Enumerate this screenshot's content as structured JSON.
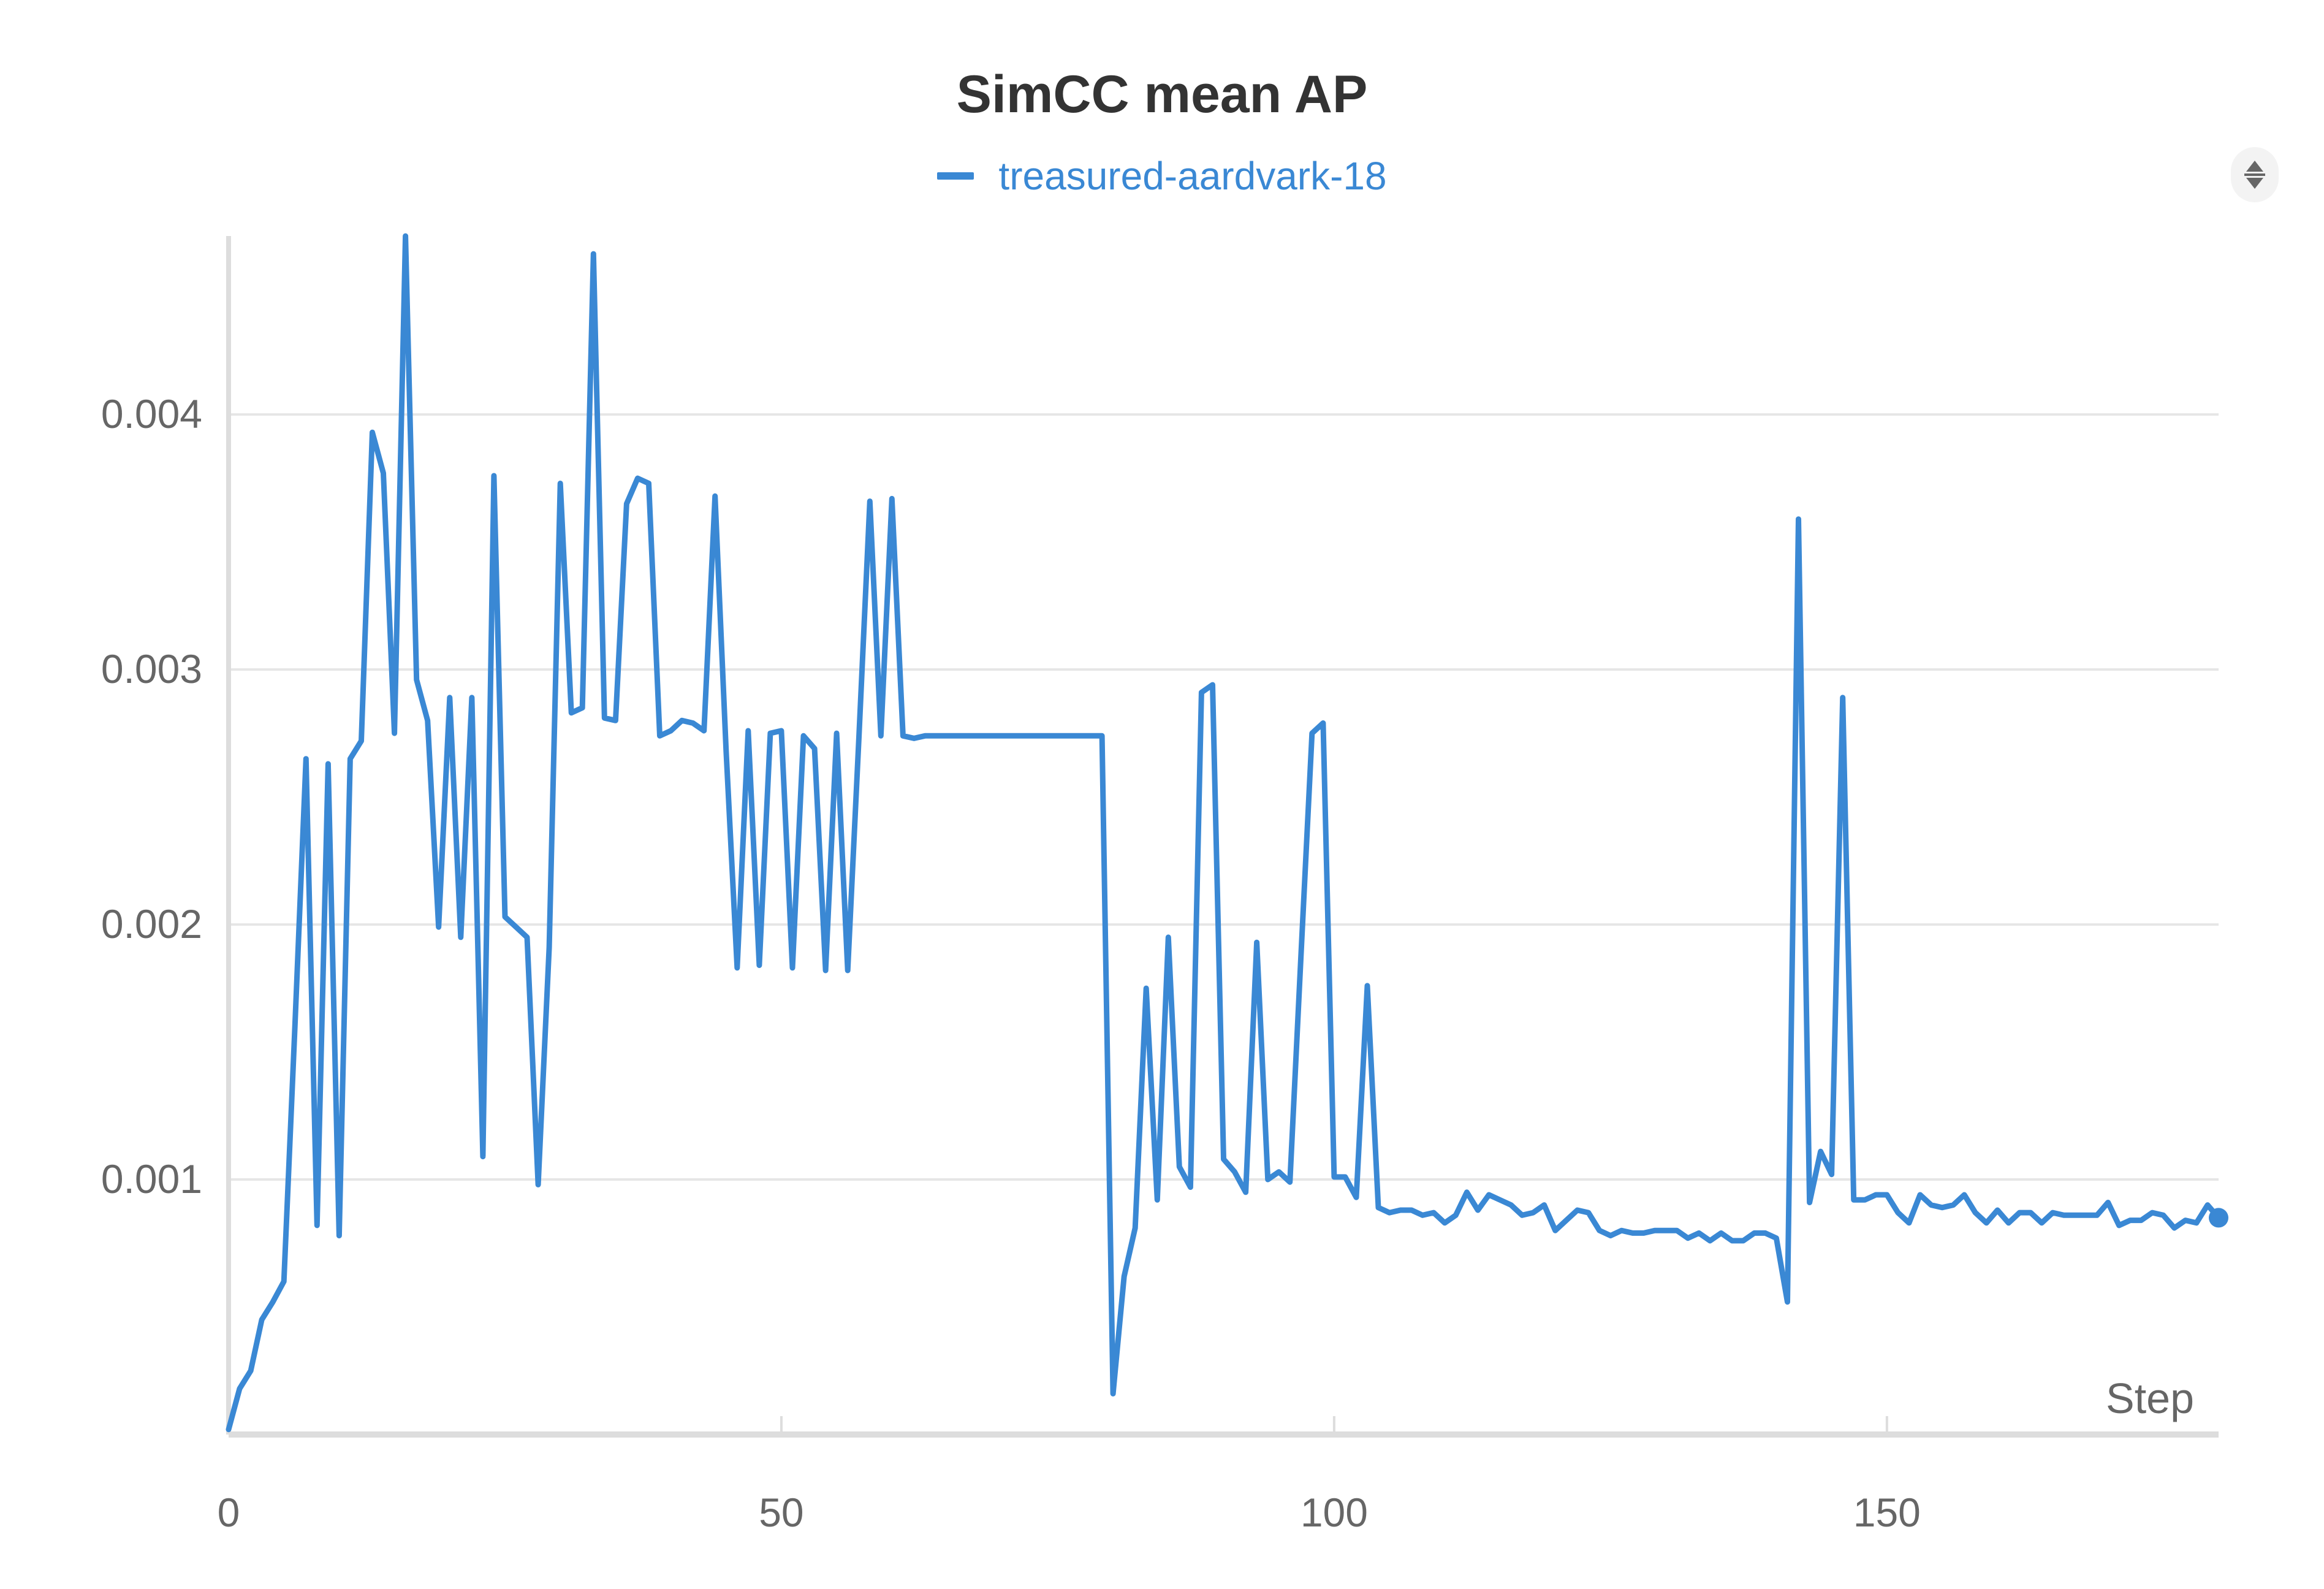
{
  "chart_data": {
    "type": "line",
    "title": "SimCC mean AP",
    "xlabel": "Step",
    "ylabel": "",
    "xlim": [
      0,
      180
    ],
    "ylim": [
      0,
      0.0047
    ],
    "x_ticks": [
      "0",
      "50",
      "100",
      "150"
    ],
    "x_tick_values": [
      0,
      50,
      100,
      150
    ],
    "y_ticks": [
      "0.001",
      "0.002",
      "0.003",
      "0.004"
    ],
    "y_tick_values": [
      0.001,
      0.002,
      0.003,
      0.004
    ],
    "grid": true,
    "legend_position": "top-center",
    "series": [
      {
        "name": "treasured-aardvark-18",
        "color": "#3a88d4",
        "x": [
          0,
          1,
          2,
          3,
          4,
          5,
          6,
          7,
          8,
          9,
          10,
          11,
          12,
          13,
          14,
          15,
          16,
          17,
          18,
          19,
          20,
          21,
          22,
          23,
          24,
          25,
          26,
          27,
          28,
          29,
          30,
          31,
          32,
          33,
          34,
          35,
          36,
          37,
          38,
          39,
          40,
          41,
          42,
          43,
          44,
          45,
          46,
          47,
          48,
          49,
          50,
          51,
          52,
          53,
          54,
          55,
          56,
          57,
          58,
          59,
          60,
          61,
          62,
          63,
          64,
          65,
          66,
          67,
          68,
          69,
          70,
          71,
          72,
          73,
          74,
          75,
          76,
          77,
          78,
          79,
          80,
          81,
          82,
          83,
          84,
          85,
          86,
          87,
          88,
          89,
          90,
          91,
          92,
          93,
          94,
          95,
          96,
          97,
          98,
          99,
          100,
          101,
          102,
          103,
          104,
          105,
          106,
          107,
          108,
          109,
          110,
          111,
          112,
          113,
          114,
          115,
          116,
          117,
          118,
          119,
          120,
          121,
          122,
          123,
          124,
          125,
          126,
          127,
          128,
          129,
          130,
          131,
          132,
          133,
          134,
          135,
          136,
          137,
          138,
          139,
          140,
          141,
          142,
          143,
          144,
          145,
          146,
          147,
          148,
          149,
          150,
          151,
          152,
          153,
          154,
          155,
          156,
          157,
          158,
          159,
          160,
          161,
          162,
          163,
          164,
          165,
          166,
          167,
          168,
          169,
          170,
          171,
          172,
          173,
          174,
          175,
          176,
          177,
          178,
          179,
          180
        ],
        "y": [
          2e-05,
          0.00018,
          0.00025,
          0.00045,
          0.00052,
          0.0006,
          0.0016,
          0.00265,
          0.00082,
          0.00263,
          0.00078,
          0.00265,
          0.00272,
          0.00393,
          0.00377,
          0.00275,
          0.0047,
          0.00296,
          0.0028,
          0.00199,
          0.00289,
          0.00195,
          0.00289,
          0.00109,
          0.00376,
          0.00203,
          0.00199,
          0.00195,
          0.00098,
          0.00191,
          0.00373,
          0.00283,
          0.00285,
          0.00463,
          0.00281,
          0.0028,
          0.00365,
          0.00375,
          0.00373,
          0.00274,
          0.00276,
          0.0028,
          0.00279,
          0.00276,
          0.00368,
          0.00268,
          0.00183,
          0.00276,
          0.00184,
          0.00275,
          0.00276,
          0.00183,
          0.00274,
          0.00269,
          0.00182,
          0.00275,
          0.00182,
          0.00272,
          0.00366,
          0.00274,
          0.00367,
          0.00274,
          0.00273,
          0.00274,
          0.00274,
          0.00274,
          0.00274,
          0.00274,
          0.00274,
          0.00274,
          0.00274,
          0.00274,
          0.00274,
          0.00274,
          0.00274,
          0.00274,
          0.00274,
          0.00274,
          0.00274,
          0.00274,
          0.00016,
          0.00062,
          0.00081,
          0.00175,
          0.00092,
          0.00195,
          0.00105,
          0.00097,
          0.00291,
          0.00294,
          0.00108,
          0.00103,
          0.00095,
          0.00193,
          0.001,
          0.00103,
          0.00099,
          0.00188,
          0.00275,
          0.00279,
          0.00101,
          0.00101,
          0.00093,
          0.00176,
          0.00089,
          0.00087,
          0.00088,
          0.00088,
          0.00086,
          0.00087,
          0.00083,
          0.00086,
          0.00095,
          0.00088,
          0.00094,
          0.00092,
          0.0009,
          0.00086,
          0.00087,
          0.0009,
          0.0008,
          0.00084,
          0.00088,
          0.00087,
          0.0008,
          0.00078,
          0.0008,
          0.00079,
          0.00079,
          0.0008,
          0.0008,
          0.0008,
          0.00077,
          0.00079,
          0.00076,
          0.00079,
          0.00076,
          0.00076,
          0.00079,
          0.00079,
          0.00077,
          0.00052,
          0.00359,
          0.00091,
          0.00111,
          0.00102,
          0.00289,
          0.00092,
          0.00092,
          0.00094,
          0.00094,
          0.00087,
          0.00083,
          0.00094,
          0.0009,
          0.00089,
          0.0009,
          0.00094,
          0.00087,
          0.00083,
          0.00088,
          0.00083,
          0.00087,
          0.00087,
          0.00083,
          0.00087,
          0.00086,
          0.00086,
          0.00086,
          0.00086,
          0.00091,
          0.00082,
          0.00084,
          0.00084,
          0.00087,
          0.00086,
          0.00081,
          0.00084,
          0.00083,
          0.0009,
          0.00085
        ]
      }
    ]
  }
}
